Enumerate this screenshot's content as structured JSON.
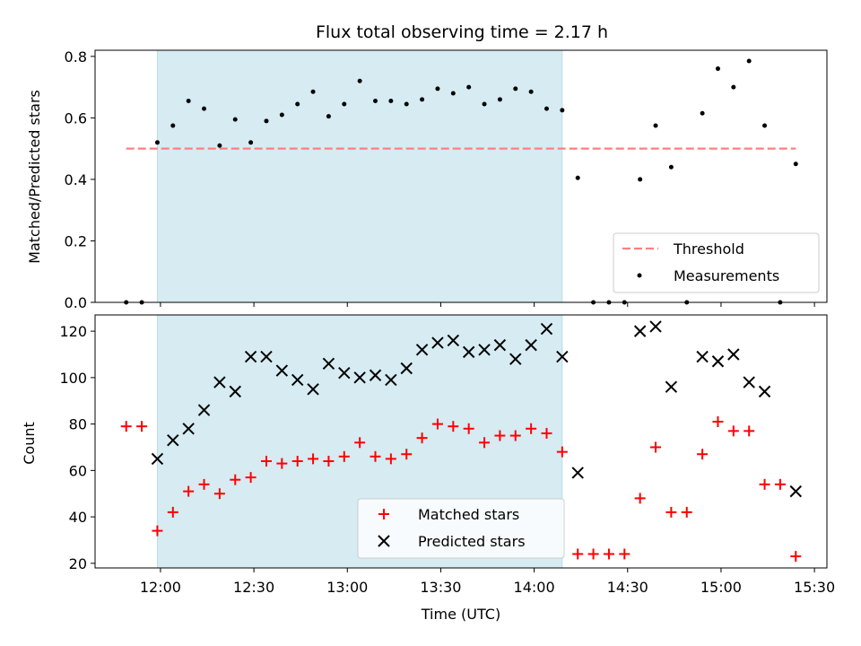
{
  "chart_data": [
    {
      "type": "scatter",
      "title": "Flux total observing time = 2.17 h",
      "ylabel": "Matched/Predicted stars",
      "ylim": [
        0,
        0.82
      ],
      "yticks": [
        "0.0",
        "0.2",
        "0.4",
        "0.6",
        "0.8"
      ],
      "shaded_region": {
        "x_start": "11:59",
        "x_end": "14:09",
        "color": "#add8e6"
      },
      "threshold": {
        "name": "Threshold",
        "value": 0.5,
        "x_start": "11:49",
        "x_end": "15:24",
        "color": "#ff7f7f",
        "style": "dashed"
      },
      "series": [
        {
          "name": "Measurements",
          "color": "#000000",
          "marker": "dot",
          "x": [
            "11:49",
            "11:54",
            "11:59",
            "12:04",
            "12:09",
            "12:14",
            "12:19",
            "12:24",
            "12:29",
            "12:34",
            "12:39",
            "12:44",
            "12:49",
            "12:54",
            "12:59",
            "13:04",
            "13:09",
            "13:14",
            "13:19",
            "13:24",
            "13:29",
            "13:34",
            "13:39",
            "13:44",
            "13:49",
            "13:54",
            "13:59",
            "14:04",
            "14:09",
            "14:14",
            "14:19",
            "14:24",
            "14:29",
            "14:34",
            "14:39",
            "14:44",
            "14:49",
            "14:54",
            "14:59",
            "15:04",
            "15:09",
            "15:14",
            "15:19",
            "15:24"
          ],
          "y": [
            0,
            0,
            0.52,
            0.575,
            0.655,
            0.63,
            0.51,
            0.595,
            0.52,
            0.59,
            0.61,
            0.645,
            0.685,
            0.605,
            0.645,
            0.72,
            0.655,
            0.655,
            0.645,
            0.66,
            0.695,
            0.68,
            0.7,
            0.645,
            0.66,
            0.695,
            0.685,
            0.63,
            0.625,
            0.405,
            0,
            0,
            0,
            0.4,
            0.575,
            0.44,
            0,
            0.615,
            0.76,
            0.7,
            0.785,
            0.575,
            0,
            0.45
          ]
        }
      ],
      "legend": {
        "placement": "lower right",
        "entries": [
          "Threshold",
          "Measurements"
        ]
      }
    },
    {
      "type": "scatter",
      "xlabel": "Time (UTC)",
      "ylabel": "Count",
      "ylim": [
        18,
        127
      ],
      "yticks": [
        "20",
        "40",
        "60",
        "80",
        "100",
        "120"
      ],
      "xticks": [
        "12:00",
        "12:30",
        "13:00",
        "13:30",
        "14:00",
        "14:30",
        "15:00",
        "15:30"
      ],
      "xlim": [
        "11:39",
        "15:34"
      ],
      "shaded_region": {
        "x_start": "11:59",
        "x_end": "14:09",
        "color": "#add8e6"
      },
      "series": [
        {
          "name": "Matched stars",
          "color": "#ff0000",
          "marker": "plus",
          "x": [
            "11:49",
            "11:54",
            "11:59",
            "12:04",
            "12:09",
            "12:14",
            "12:19",
            "12:24",
            "12:29",
            "12:34",
            "12:39",
            "12:44",
            "12:49",
            "12:54",
            "12:59",
            "13:04",
            "13:09",
            "13:14",
            "13:19",
            "13:24",
            "13:29",
            "13:34",
            "13:39",
            "13:44",
            "13:49",
            "13:54",
            "13:59",
            "14:04",
            "14:09",
            "14:14",
            "14:19",
            "14:24",
            "14:29",
            "14:34",
            "14:39",
            "14:44",
            "14:49",
            "14:54",
            "14:59",
            "15:04",
            "15:09",
            "15:14",
            "15:19",
            "15:24"
          ],
          "y": [
            79,
            79,
            34,
            42,
            51,
            54,
            50,
            56,
            57,
            64,
            63,
            64,
            65,
            64,
            66,
            72,
            66,
            65,
            67,
            74,
            80,
            79,
            78,
            72,
            75,
            75,
            78,
            76,
            68,
            24,
            24,
            24,
            24,
            48,
            70,
            42,
            42,
            67,
            81,
            77,
            77,
            54,
            54,
            23
          ]
        },
        {
          "name": "Predicted stars",
          "color": "#000000",
          "marker": "x",
          "x": [
            "11:59",
            "12:04",
            "12:09",
            "12:14",
            "12:19",
            "12:24",
            "12:29",
            "12:34",
            "12:39",
            "12:44",
            "12:49",
            "12:54",
            "12:59",
            "13:04",
            "13:09",
            "13:14",
            "13:19",
            "13:24",
            "13:29",
            "13:34",
            "13:39",
            "13:44",
            "13:49",
            "13:54",
            "13:59",
            "14:04",
            "14:09",
            "14:14",
            "14:34",
            "14:39",
            "14:44",
            "14:54",
            "14:59",
            "15:04",
            "15:09",
            "15:14",
            "15:24"
          ],
          "y": [
            65,
            73,
            78,
            86,
            98,
            94,
            109,
            109,
            103,
            99,
            95,
            106,
            102,
            100,
            101,
            99,
            104,
            112,
            115,
            116,
            111,
            112,
            114,
            108,
            114,
            121,
            109,
            59,
            120,
            122,
            96,
            109,
            107,
            110,
            98,
            94,
            51
          ]
        }
      ],
      "legend": {
        "placement": "lower center",
        "entries": [
          "Matched stars",
          "Predicted stars"
        ]
      }
    }
  ]
}
